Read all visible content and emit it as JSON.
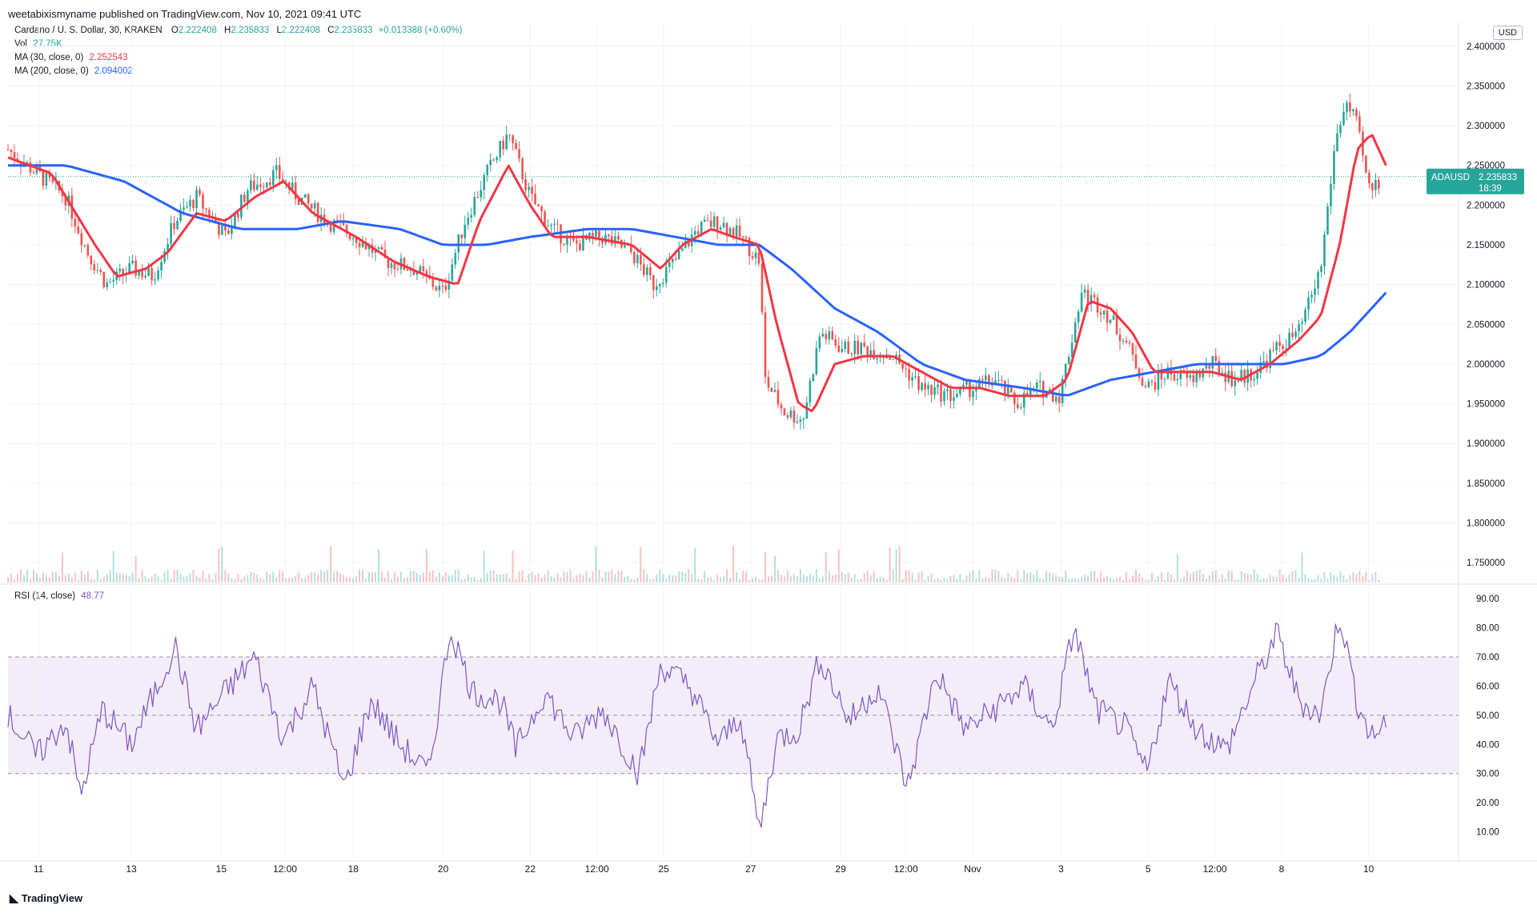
{
  "publisher_line": "weetabixismyname published on TradingView.com, Nov 10, 2021 09:41 UTC",
  "legend": {
    "symbol_line": "Cardano / U. S. Dollar, 30, KRAKEN",
    "o_label": "O",
    "o_value": "2.222408",
    "h_label": "H",
    "h_value": "2.235833",
    "l_label": "L",
    "l_value": "2.222408",
    "c_label": "C",
    "c_value": "2.235833",
    "change": "+0.013388 (+0.60%)",
    "vol_label": "Vol",
    "vol_value": "27.75K",
    "ma30_label": "MA (30, close, 0)",
    "ma30_value": "2.252543",
    "ma200_label": "MA (200, close, 0)",
    "ma200_value": "2.094002",
    "rsi_label": "RSI (14, close)",
    "rsi_value": "48.77"
  },
  "currency": "USD",
  "price_badge": {
    "ticker": "ADAUSD",
    "price": "2.235833",
    "countdown": "18:39"
  },
  "brand": "TradingView",
  "colors": {
    "up": "#26a69a",
    "down": "#ef5350",
    "ma30": "#f23645",
    "ma200": "#2962ff",
    "rsi": "#7e57c2",
    "rsi_band": "#ede7f6"
  },
  "chart_data": {
    "type": "candlestick",
    "price_axis": {
      "ylim": [
        1.725,
        2.43
      ],
      "ticks": [
        "2.400000",
        "2.350000",
        "2.300000",
        "2.250000",
        "2.200000",
        "2.150000",
        "2.100000",
        "2.050000",
        "2.000000",
        "1.950000",
        "1.900000",
        "1.850000",
        "1.800000",
        "1.750000"
      ]
    },
    "rsi_axis": {
      "ylim": [
        0,
        95
      ],
      "ticks": [
        "90.00",
        "80.00",
        "70.00",
        "60.00",
        "50.00",
        "40.00",
        "30.00",
        "20.00",
        "10.00"
      ],
      "band": [
        30,
        70
      ],
      "midline": 50
    },
    "x_ticks": [
      {
        "label": "11",
        "x": 0.021
      },
      {
        "label": "13",
        "x": 0.085
      },
      {
        "label": "15",
        "x": 0.147
      },
      {
        "label": "12:00",
        "x": 0.191
      },
      {
        "label": "18",
        "x": 0.238
      },
      {
        "label": "20",
        "x": 0.3
      },
      {
        "label": "22",
        "x": 0.36
      },
      {
        "label": "12:00",
        "x": 0.406
      },
      {
        "label": "25",
        "x": 0.452
      },
      {
        "label": "27",
        "x": 0.512
      },
      {
        "label": "29",
        "x": 0.574
      },
      {
        "label": "12:00",
        "x": 0.619
      },
      {
        "label": "Nov",
        "x": 0.665
      },
      {
        "label": "3",
        "x": 0.726
      },
      {
        "label": "5",
        "x": 0.786
      },
      {
        "label": "12:00",
        "x": 0.832
      },
      {
        "label": "8",
        "x": 0.878
      },
      {
        "label": "10",
        "x": 0.938
      }
    ],
    "price_keypoints": [
      [
        0.0,
        2.27
      ],
      [
        0.02,
        2.24
      ],
      [
        0.04,
        2.21
      ],
      [
        0.055,
        2.14
      ],
      [
        0.068,
        2.1
      ],
      [
        0.085,
        2.12
      ],
      [
        0.1,
        2.11
      ],
      [
        0.115,
        2.18
      ],
      [
        0.13,
        2.21
      ],
      [
        0.15,
        2.16
      ],
      [
        0.165,
        2.22
      ],
      [
        0.185,
        2.24
      ],
      [
        0.2,
        2.21
      ],
      [
        0.22,
        2.18
      ],
      [
        0.24,
        2.16
      ],
      [
        0.26,
        2.13
      ],
      [
        0.28,
        2.12
      ],
      [
        0.3,
        2.09
      ],
      [
        0.315,
        2.18
      ],
      [
        0.33,
        2.24
      ],
      [
        0.345,
        2.29
      ],
      [
        0.36,
        2.21
      ],
      [
        0.375,
        2.17
      ],
      [
        0.39,
        2.15
      ],
      [
        0.41,
        2.16
      ],
      [
        0.43,
        2.14
      ],
      [
        0.445,
        2.1
      ],
      [
        0.46,
        2.13
      ],
      [
        0.475,
        2.17
      ],
      [
        0.49,
        2.18
      ],
      [
        0.505,
        2.16
      ],
      [
        0.518,
        2.13
      ],
      [
        0.522,
        1.98
      ],
      [
        0.535,
        1.94
      ],
      [
        0.548,
        1.93
      ],
      [
        0.56,
        2.04
      ],
      [
        0.575,
        2.02
      ],
      [
        0.59,
        2.02
      ],
      [
        0.61,
        2.01
      ],
      [
        0.63,
        1.97
      ],
      [
        0.65,
        1.96
      ],
      [
        0.665,
        1.97
      ],
      [
        0.68,
        1.98
      ],
      [
        0.695,
        1.95
      ],
      [
        0.71,
        1.97
      ],
      [
        0.725,
        1.96
      ],
      [
        0.74,
        2.09
      ],
      [
        0.755,
        2.07
      ],
      [
        0.77,
        2.03
      ],
      [
        0.785,
        1.97
      ],
      [
        0.8,
        1.99
      ],
      [
        0.815,
        1.98
      ],
      [
        0.83,
        2.0
      ],
      [
        0.845,
        1.98
      ],
      [
        0.86,
        1.99
      ],
      [
        0.875,
        2.02
      ],
      [
        0.89,
        2.04
      ],
      [
        0.905,
        2.12
      ],
      [
        0.915,
        2.28
      ],
      [
        0.922,
        2.33
      ],
      [
        0.93,
        2.3
      ],
      [
        0.938,
        2.22
      ],
      [
        0.945,
        2.23
      ]
    ],
    "ma30_keypoints": [
      [
        0.0,
        2.26
      ],
      [
        0.03,
        2.24
      ],
      [
        0.06,
        2.15
      ],
      [
        0.075,
        2.11
      ],
      [
        0.095,
        2.12
      ],
      [
        0.11,
        2.14
      ],
      [
        0.13,
        2.19
      ],
      [
        0.15,
        2.18
      ],
      [
        0.17,
        2.21
      ],
      [
        0.19,
        2.23
      ],
      [
        0.21,
        2.19
      ],
      [
        0.24,
        2.16
      ],
      [
        0.265,
        2.13
      ],
      [
        0.29,
        2.11
      ],
      [
        0.31,
        2.1
      ],
      [
        0.325,
        2.18
      ],
      [
        0.345,
        2.25
      ],
      [
        0.36,
        2.2
      ],
      [
        0.375,
        2.16
      ],
      [
        0.4,
        2.16
      ],
      [
        0.43,
        2.15
      ],
      [
        0.45,
        2.12
      ],
      [
        0.465,
        2.15
      ],
      [
        0.485,
        2.17
      ],
      [
        0.5,
        2.16
      ],
      [
        0.518,
        2.15
      ],
      [
        0.53,
        2.05
      ],
      [
        0.545,
        1.95
      ],
      [
        0.555,
        1.94
      ],
      [
        0.57,
        2.0
      ],
      [
        0.59,
        2.01
      ],
      [
        0.61,
        2.01
      ],
      [
        0.63,
        1.99
      ],
      [
        0.65,
        1.97
      ],
      [
        0.67,
        1.97
      ],
      [
        0.69,
        1.96
      ],
      [
        0.715,
        1.96
      ],
      [
        0.73,
        1.98
      ],
      [
        0.745,
        2.08
      ],
      [
        0.76,
        2.07
      ],
      [
        0.775,
        2.04
      ],
      [
        0.79,
        1.99
      ],
      [
        0.81,
        1.99
      ],
      [
        0.83,
        1.99
      ],
      [
        0.85,
        1.98
      ],
      [
        0.87,
        2.0
      ],
      [
        0.89,
        2.03
      ],
      [
        0.905,
        2.06
      ],
      [
        0.918,
        2.15
      ],
      [
        0.93,
        2.27
      ],
      [
        0.94,
        2.29
      ],
      [
        0.95,
        2.25
      ]
    ],
    "ma200_keypoints": [
      [
        0.0,
        2.25
      ],
      [
        0.04,
        2.25
      ],
      [
        0.08,
        2.23
      ],
      [
        0.12,
        2.19
      ],
      [
        0.16,
        2.17
      ],
      [
        0.2,
        2.17
      ],
      [
        0.23,
        2.18
      ],
      [
        0.27,
        2.17
      ],
      [
        0.3,
        2.15
      ],
      [
        0.33,
        2.15
      ],
      [
        0.36,
        2.16
      ],
      [
        0.4,
        2.17
      ],
      [
        0.43,
        2.17
      ],
      [
        0.46,
        2.16
      ],
      [
        0.49,
        2.15
      ],
      [
        0.518,
        2.15
      ],
      [
        0.54,
        2.12
      ],
      [
        0.57,
        2.07
      ],
      [
        0.6,
        2.04
      ],
      [
        0.63,
        2.0
      ],
      [
        0.66,
        1.98
      ],
      [
        0.7,
        1.97
      ],
      [
        0.73,
        1.96
      ],
      [
        0.76,
        1.98
      ],
      [
        0.79,
        1.99
      ],
      [
        0.82,
        2.0
      ],
      [
        0.85,
        2.0
      ],
      [
        0.88,
        2.0
      ],
      [
        0.905,
        2.01
      ],
      [
        0.925,
        2.04
      ],
      [
        0.95,
        2.09
      ]
    ],
    "rsi_keypoints": [
      [
        0.0,
        50
      ],
      [
        0.02,
        36
      ],
      [
        0.04,
        48
      ],
      [
        0.05,
        22
      ],
      [
        0.065,
        52
      ],
      [
        0.085,
        40
      ],
      [
        0.105,
        62
      ],
      [
        0.115,
        74
      ],
      [
        0.13,
        45
      ],
      [
        0.15,
        58
      ],
      [
        0.17,
        70
      ],
      [
        0.19,
        42
      ],
      [
        0.21,
        60
      ],
      [
        0.232,
        25
      ],
      [
        0.25,
        55
      ],
      [
        0.27,
        40
      ],
      [
        0.29,
        30
      ],
      [
        0.305,
        80
      ],
      [
        0.32,
        58
      ],
      [
        0.34,
        55
      ],
      [
        0.35,
        38
      ],
      [
        0.37,
        58
      ],
      [
        0.39,
        42
      ],
      [
        0.41,
        52
      ],
      [
        0.435,
        30
      ],
      [
        0.45,
        67
      ],
      [
        0.47,
        60
      ],
      [
        0.49,
        40
      ],
      [
        0.505,
        50
      ],
      [
        0.518,
        10
      ],
      [
        0.53,
        42
      ],
      [
        0.545,
        45
      ],
      [
        0.56,
        70
      ],
      [
        0.58,
        48
      ],
      [
        0.6,
        60
      ],
      [
        0.62,
        25
      ],
      [
        0.64,
        65
      ],
      [
        0.66,
        45
      ],
      [
        0.68,
        52
      ],
      [
        0.7,
        60
      ],
      [
        0.72,
        45
      ],
      [
        0.735,
        80
      ],
      [
        0.75,
        52
      ],
      [
        0.77,
        46
      ],
      [
        0.785,
        30
      ],
      [
        0.8,
        62
      ],
      [
        0.82,
        45
      ],
      [
        0.84,
        38
      ],
      [
        0.86,
        62
      ],
      [
        0.875,
        78
      ],
      [
        0.89,
        55
      ],
      [
        0.905,
        50
      ],
      [
        0.918,
        85
      ],
      [
        0.93,
        55
      ],
      [
        0.94,
        42
      ],
      [
        0.95,
        48
      ]
    ]
  }
}
